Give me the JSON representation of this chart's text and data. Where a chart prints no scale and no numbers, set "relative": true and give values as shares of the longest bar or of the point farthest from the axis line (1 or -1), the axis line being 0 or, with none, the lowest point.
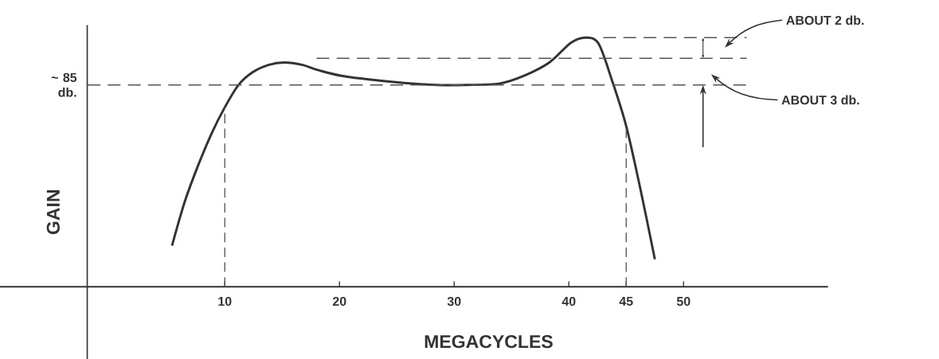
{
  "chart_data": {
    "type": "line",
    "relative": true,
    "xlabel": "MEGACYCLES",
    "ylabel": "GAIN",
    "x": [
      5.4,
      6.5,
      7.7,
      8.9,
      10,
      11.2,
      12.4,
      13.8,
      15.2,
      16.8,
      18.1,
      20.4,
      25.1,
      28.5,
      31,
      33.9,
      36.1,
      38.3,
      40.2,
      41.5,
      42.6,
      43.75,
      45,
      46.25,
      47.5
    ],
    "values": [
      0.165,
      0.34,
      0.49,
      0.62,
      0.72,
      0.81,
      0.86,
      0.89,
      0.9,
      0.89,
      0.87,
      0.845,
      0.82,
      0.81,
      0.81,
      0.815,
      0.847,
      0.9,
      0.98,
      1.0,
      0.975,
      0.83,
      0.645,
      0.39,
      0.11
    ],
    "color": "#333333",
    "marker": "none",
    "line_style": "solid",
    "xlim": [
      -9.6,
      62.6
    ],
    "xticks": [
      10,
      20,
      30,
      40,
      45,
      50
    ],
    "ref_lines": [
      {
        "axis": "y",
        "value": 0.81,
        "label": "~ 85 db.",
        "color": "#555555",
        "line_style": "dashed"
      },
      {
        "axis": "y",
        "value": 0.917,
        "color": "#555555",
        "line_style": "dashed"
      },
      {
        "axis": "y",
        "value": 1.0,
        "color": "#555555",
        "line_style": "dashed"
      },
      {
        "axis": "x",
        "value": -2,
        "color": "#333333",
        "line_style": "solid"
      },
      {
        "axis": "x",
        "value": 10,
        "color": "#555555",
        "line_style": "dashed"
      },
      {
        "axis": "x",
        "value": 45,
        "color": "#555555",
        "line_style": "dashed"
      }
    ],
    "annotations": [
      "ABOUT 2 db.",
      "ABOUT 3 db."
    ]
  }
}
